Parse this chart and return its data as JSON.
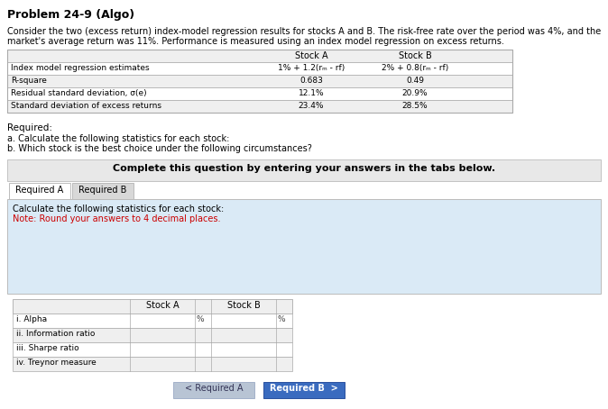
{
  "title": "Problem 24-9 (Algo)",
  "intro_line1": "Consider the two (excess return) index-model regression results for stocks A and B. The risk-free rate over the period was 4%, and the",
  "intro_line2": "market's average return was 11%. Performance is measured using an index model regression on excess returns.",
  "table1_rows": [
    [
      "Index model regression estimates",
      "1% + 1.2(rₘ - rf)",
      "2% + 0.8(rₘ - rf)"
    ],
    [
      "R-square",
      "0.683",
      "0.49"
    ],
    [
      "Residual standard deviation, σ(e)",
      "12.1%",
      "20.9%"
    ],
    [
      "Standard deviation of excess returns",
      "23.4%",
      "28.5%"
    ]
  ],
  "required_label": "Required:",
  "req_a_text": "a. Calculate the following statistics for each stock:",
  "req_b_text": "b. Which stock is the best choice under the following circumstances?",
  "complete_text": "Complete this question by entering your answers in the tabs below.",
  "tab1_label": "Required A",
  "tab2_label": "Required B",
  "calc_text": "Calculate the following statistics for each stock:",
  "note_text": "Note: Round your answers to 4 decimal places.",
  "table2_rows": [
    "i. Alpha",
    "ii. Information ratio",
    "iii. Sharpe ratio",
    "iv. Treynor measure"
  ],
  "btn1_label": "< Required A",
  "btn2_label": "Required B  >",
  "bg_color": "#ffffff",
  "light_gray": "#efefef",
  "banner_gray": "#e8e8e8",
  "light_blue": "#daeaf6",
  "medium_gray": "#bbbbbb",
  "tab_active_color": "#ffffff",
  "tab_inactive_color": "#d8d8d8",
  "btn_blue_color": "#3a6bbf",
  "btn_gray_color": "#b8c4d4",
  "red_color": "#cc0000",
  "table_border": "#aaaaaa",
  "input_bg": "#ffffff"
}
